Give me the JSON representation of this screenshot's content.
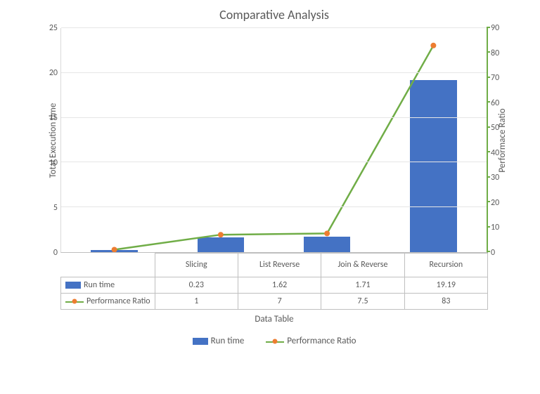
{
  "chart": {
    "type": "bar+line",
    "title": "Comparative Analysis",
    "title_fontsize": 18,
    "title_color": "#595959",
    "background_color": "#ffffff",
    "grid_color": "#e6e6e6",
    "axis_text_color": "#595959",
    "label_fontsize": 13,
    "tick_fontsize": 12,
    "categories": [
      "Slicing",
      "List Reverse",
      "Join & Reverse",
      "Recursion"
    ],
    "x_axis_title": "Data Table",
    "left_axis": {
      "label": "Total Execution time",
      "min": 0,
      "max": 25,
      "step": 5,
      "ticks": [
        0,
        5,
        10,
        15,
        20,
        25
      ]
    },
    "right_axis": {
      "label": "Performace  Ratio",
      "min": 0,
      "max": 90,
      "step": 10,
      "ticks": [
        0,
        10,
        20,
        30,
        40,
        50,
        60,
        70,
        80,
        90
      ],
      "color": "#70ad47"
    },
    "series": {
      "runtime": {
        "name": "Run time",
        "type": "bar",
        "axis": "left",
        "color": "#4472c4",
        "bar_width_frac": 0.44,
        "values": [
          0.23,
          1.62,
          1.71,
          19.19
        ]
      },
      "perf": {
        "name": "Performance Ratio",
        "type": "line",
        "axis": "right",
        "line_color": "#70ad47",
        "line_width": 2.5,
        "marker_color": "#ed7d31",
        "marker_size": 8,
        "values": [
          1,
          7,
          7.5,
          83
        ]
      }
    },
    "legend": {
      "position": "bottom",
      "items": [
        "Run time",
        "Performance Ratio"
      ]
    }
  }
}
